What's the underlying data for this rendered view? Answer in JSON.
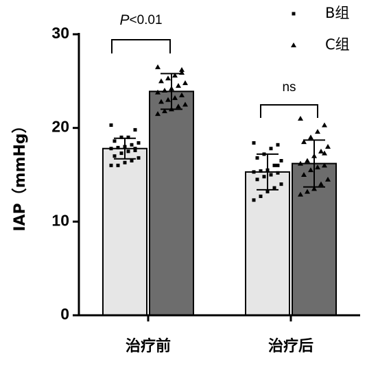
{
  "chart_data": {
    "type": "bar",
    "y_label": "IAP（mmHg）",
    "categories": [
      "治疗前",
      "治疗后"
    ],
    "series": [
      {
        "name": "B组",
        "color": "#e6e6e6",
        "marker": "square",
        "values": [
          17.8,
          15.3
        ],
        "errors": [
          1.1,
          1.9
        ],
        "points": [
          [
            20.3,
            19.8,
            19.0,
            19.0,
            18.6,
            18.4,
            18.2,
            18.0,
            17.9,
            17.8,
            17.6,
            17.5,
            17.3,
            17.0,
            16.8,
            16.5,
            16.3,
            16.0,
            16.0,
            17.8
          ],
          [
            18.4,
            18.2,
            17.8,
            17.2,
            16.8,
            16.5,
            16.0,
            15.5,
            15.4,
            15.3,
            15.2,
            15.0,
            14.8,
            14.5,
            14.0,
            13.6,
            13.2,
            12.7,
            12.3,
            16.0
          ]
        ]
      },
      {
        "name": "C组",
        "color": "#6d6d6d",
        "marker": "triangle",
        "values": [
          23.9,
          16.2
        ],
        "errors": [
          1.9,
          2.5
        ],
        "points": [
          [
            26.5,
            26.2,
            25.6,
            25.3,
            25.0,
            24.8,
            24.5,
            24.2,
            24.0,
            23.8,
            23.5,
            23.2,
            23.0,
            22.8,
            22.5,
            22.3,
            22.0,
            21.8,
            21.5,
            25.9
          ],
          [
            21.0,
            20.3,
            19.6,
            19.0,
            18.5,
            18.0,
            17.5,
            17.0,
            16.5,
            16.2,
            16.0,
            15.8,
            15.5,
            15.0,
            14.5,
            14.0,
            13.5,
            13.2,
            12.9,
            17.3
          ]
        ]
      }
    ],
    "significance": [
      {
        "prefix": "P",
        "label": "<0.01"
      },
      {
        "label": "ns"
      }
    ],
    "ylim": [
      0,
      30
    ],
    "yticks": [
      0,
      10,
      20,
      30
    ]
  }
}
